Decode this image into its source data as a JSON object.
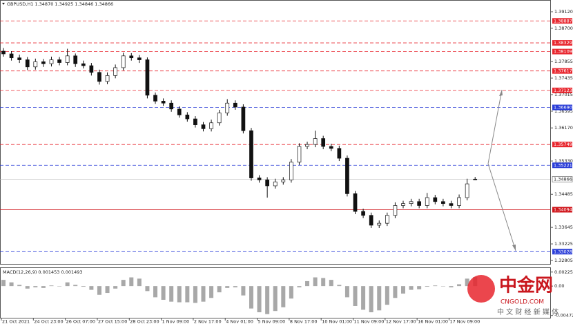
{
  "chart_data": {
    "type": "candlestick",
    "title": "GBPUSD,H1  1.34870 1.34925 1.34846 1.34866",
    "categories": [
      "21 Oct 2021",
      null,
      null,
      null,
      "24 Oct 23:00",
      null,
      null,
      null,
      "26 Oct 07:00",
      null,
      null,
      null,
      "27 Oct 15:00",
      null,
      null,
      null,
      "28 Oct 23:00",
      null,
      null,
      null,
      "1 Nov 09:00",
      null,
      null,
      null,
      "2 Nov 17:00",
      null,
      null,
      null,
      "4 Nov 01:00",
      null,
      null,
      null,
      "5 Nov 09:00",
      null,
      null,
      null,
      "8 Nov 17:00",
      null,
      null,
      null,
      "10 Nov 01:00",
      null,
      null,
      null,
      "11 Nov 09:00",
      null,
      null,
      null,
      "12 Nov 17:00",
      null,
      null,
      null,
      "16 Nov 01:00",
      null,
      null,
      null,
      "17 Nov 09:00",
      null,
      null,
      null
    ],
    "ohlc": [
      [
        1.3812,
        1.382,
        1.3798,
        1.3805
      ],
      [
        1.3805,
        1.3812,
        1.3788,
        1.3795
      ],
      [
        1.3795,
        1.3803,
        1.3782,
        1.379
      ],
      [
        1.379,
        1.3797,
        1.3764,
        1.3772
      ],
      [
        1.3772,
        1.3793,
        1.3765,
        1.3785
      ],
      [
        1.3785,
        1.3792,
        1.3772,
        1.378
      ],
      [
        1.378,
        1.3798,
        1.3773,
        1.379
      ],
      [
        1.379,
        1.3797,
        1.3776,
        1.3783
      ],
      [
        1.3783,
        1.3818,
        1.3776,
        1.38
      ],
      [
        1.38,
        1.3806,
        1.3772,
        1.378
      ],
      [
        1.378,
        1.3788,
        1.3768,
        1.3775
      ],
      [
        1.3775,
        1.3782,
        1.375,
        1.3758
      ],
      [
        1.3758,
        1.3765,
        1.3727,
        1.3735
      ],
      [
        1.3735,
        1.3758,
        1.3728,
        1.375
      ],
      [
        1.375,
        1.3778,
        1.3743,
        1.377
      ],
      [
        1.377,
        1.3808,
        1.3763,
        1.38
      ],
      [
        1.38,
        1.3807,
        1.3788,
        1.3795
      ],
      [
        1.3795,
        1.3802,
        1.3782,
        1.379
      ],
      [
        1.379,
        1.3796,
        1.3692,
        1.37
      ],
      [
        1.37,
        1.3707,
        1.3678,
        1.3685
      ],
      [
        1.3685,
        1.3692,
        1.3673,
        1.368
      ],
      [
        1.368,
        1.3687,
        1.3658,
        1.3665
      ],
      [
        1.3665,
        1.3672,
        1.3643,
        1.365
      ],
      [
        1.365,
        1.3657,
        1.3633,
        1.364
      ],
      [
        1.364,
        1.3647,
        1.3618,
        1.3625
      ],
      [
        1.3625,
        1.3632,
        1.3608,
        1.3615
      ],
      [
        1.3615,
        1.3638,
        1.3608,
        1.363
      ],
      [
        1.363,
        1.3663,
        1.3623,
        1.3655
      ],
      [
        1.3655,
        1.369,
        1.3648,
        1.368
      ],
      [
        1.368,
        1.3687,
        1.3663,
        1.367
      ],
      [
        1.367,
        1.3677,
        1.3603,
        1.361
      ],
      [
        1.361,
        1.3617,
        1.3483,
        1.349
      ],
      [
        1.349,
        1.3497,
        1.3478,
        1.3485
      ],
      [
        1.3485,
        1.3492,
        1.344,
        1.347
      ],
      [
        1.347,
        1.3488,
        1.3463,
        1.348
      ],
      [
        1.348,
        1.3492,
        1.3473,
        1.3485
      ],
      [
        1.3485,
        1.3538,
        1.3478,
        1.353
      ],
      [
        1.353,
        1.3578,
        1.3523,
        1.357
      ],
      [
        1.357,
        1.3582,
        1.3563,
        1.3575
      ],
      [
        1.3575,
        1.361,
        1.3568,
        1.359
      ],
      [
        1.359,
        1.3597,
        1.3563,
        1.357
      ],
      [
        1.357,
        1.3577,
        1.3558,
        1.3565
      ],
      [
        1.3565,
        1.3572,
        1.3533,
        1.354
      ],
      [
        1.354,
        1.3547,
        1.3443,
        1.345
      ],
      [
        1.345,
        1.3457,
        1.3398,
        1.3405
      ],
      [
        1.3405,
        1.3412,
        1.3388,
        1.3395
      ],
      [
        1.3395,
        1.3402,
        1.3363,
        1.337
      ],
      [
        1.337,
        1.3382,
        1.3363,
        1.3375
      ],
      [
        1.3375,
        1.3402,
        1.3368,
        1.3395
      ],
      [
        1.3395,
        1.3428,
        1.3388,
        1.342
      ],
      [
        1.342,
        1.3432,
        1.3413,
        1.3425
      ],
      [
        1.3425,
        1.3437,
        1.3418,
        1.343
      ],
      [
        1.343,
        1.3437,
        1.3413,
        1.342
      ],
      [
        1.342,
        1.3452,
        1.3413,
        1.344
      ],
      [
        1.344,
        1.3447,
        1.3423,
        1.343
      ],
      [
        1.343,
        1.3437,
        1.3418,
        1.3425
      ],
      [
        1.3425,
        1.3432,
        1.3413,
        1.342
      ],
      [
        1.342,
        1.3448,
        1.3413,
        1.344
      ],
      [
        1.344,
        1.3488,
        1.3433,
        1.3475
      ],
      [
        1.3487,
        1.34925,
        1.34846,
        1.34866
      ]
    ],
    "ylim": [
      1.327,
      1.39418
    ],
    "yticks": [
      {
        "value": 1.3912,
        "label": "1.39120"
      },
      {
        "value": 1.387,
        "label": "1.38700"
      },
      {
        "value": 1.37855,
        "label": "1.37855"
      },
      {
        "value": 1.37435,
        "label": "1.37435"
      },
      {
        "value": 1.37015,
        "label": "1.37015"
      },
      {
        "value": 1.36595,
        "label": "1.36595"
      },
      {
        "value": 1.3617,
        "label": "1.36170"
      },
      {
        "value": 1.3533,
        "label": "1.35330"
      },
      {
        "value": 1.34485,
        "label": "1.34485"
      },
      {
        "value": 1.33645,
        "label": "1.33645"
      },
      {
        "value": 1.33225,
        "label": "1.33225"
      },
      {
        "value": 1.32805,
        "label": "1.32805"
      }
    ],
    "levels": [
      {
        "value": 1.38887,
        "color": "#e8262e",
        "style": "dashed"
      },
      {
        "value": 1.38329,
        "color": "#e8262e",
        "style": "dashed"
      },
      {
        "value": 1.38109,
        "color": "#e8262e",
        "style": "dashed"
      },
      {
        "value": 1.37617,
        "color": "#e8262e",
        "style": "dashed"
      },
      {
        "value": 1.37123,
        "color": "#e8262e",
        "style": "dashed"
      },
      {
        "value": 1.3669,
        "label": "1.36690",
        "color": "#2b3ed8",
        "style": "dashed"
      },
      {
        "value": 1.35749,
        "color": "#e8262e",
        "style": "dashed"
      },
      {
        "value": 1.35221,
        "color": "#2b3ed8",
        "style": "dashed"
      },
      {
        "value": 1.34094,
        "color": "#d0151b",
        "style": "solid"
      },
      {
        "value": 1.33028,
        "color": "#2b3ed8",
        "style": "dashed"
      }
    ],
    "current_price": 1.34866,
    "macd": {
      "title": "MACD(12,26,9) 0.001453 0.001493",
      "color": "#a8a8a8",
      "values": [
        0.001,
        0.0006,
        0.0002,
        -0.0004,
        -0.0002,
        -0.0003,
        0.0001,
        0,
        0.0006,
        0.0002,
        -0.0001,
        -0.0006,
        -0.0014,
        -0.0011,
        -0.0004,
        0.001,
        0.0014,
        0.0012,
        -0.0008,
        -0.0018,
        -0.0022,
        -0.0025,
        -0.0026,
        -0.0026,
        -0.0027,
        -0.0025,
        -0.0019,
        -0.001,
        -0.0003,
        -0.0002,
        -0.0015,
        -0.0036,
        -0.0042,
        -0.0045,
        -0.004,
        -0.0034,
        -0.002,
        -0.0002,
        0.0008,
        0.0014,
        0.0013,
        0.001,
        0.0002,
        -0.0018,
        -0.0032,
        -0.0038,
        -0.0042,
        -0.0039,
        -0.003,
        -0.0019,
        -0.0012,
        -0.0006,
        -0.0005,
        -0.0001,
        0.0001,
        0,
        -0.0002,
        0.0003,
        0.0012,
        0.00145
      ],
      "ylim": [
        -0.0052,
        0.0029
      ],
      "yticks": [
        0.002258,
        {
          "value": 0,
          "label": "0.00"
        },
        -0.004723
      ]
    },
    "watermark": {
      "name": "中金网",
      "site": "CNGOLD.COM",
      "tagline": "中 文 财 经 新 媒 体"
    }
  }
}
